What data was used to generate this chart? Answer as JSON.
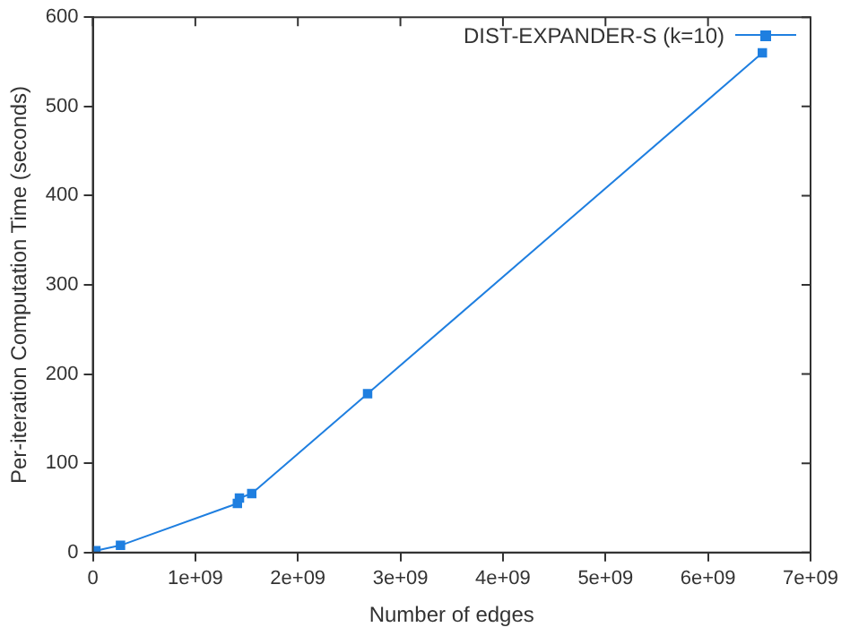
{
  "chart_data": {
    "type": "line",
    "xlabel": "Number of edges",
    "ylabel": "Per-iteration Computation Time (seconds)",
    "xlim": [
      0,
      7000000000
    ],
    "xticks": [
      {
        "value": 0,
        "label": "0"
      },
      {
        "value": 1000000000,
        "label": "1e+09"
      },
      {
        "value": 2000000000,
        "label": "2e+09"
      },
      {
        "value": 3000000000,
        "label": "3e+09"
      },
      {
        "value": 4000000000,
        "label": "4e+09"
      },
      {
        "value": 5000000000,
        "label": "5e+09"
      },
      {
        "value": 6000000000,
        "label": "6e+09"
      },
      {
        "value": 7000000000,
        "label": "7e+09"
      }
    ],
    "ylim": [
      0,
      600
    ],
    "yticks": [
      0,
      100,
      200,
      300,
      400,
      500,
      600
    ],
    "series": [
      {
        "name": "DIST-EXPANDER-S (k=10)",
        "color": "#1f7fe0",
        "x": [
          30000000,
          270000000,
          1410000000,
          1430000000,
          1550000000,
          2680000000,
          6530000000
        ],
        "values": [
          2,
          8,
          55,
          61,
          66,
          178,
          560
        ]
      }
    ],
    "legend": "top right",
    "marker": "square",
    "line_style": "solid",
    "grid": false
  }
}
